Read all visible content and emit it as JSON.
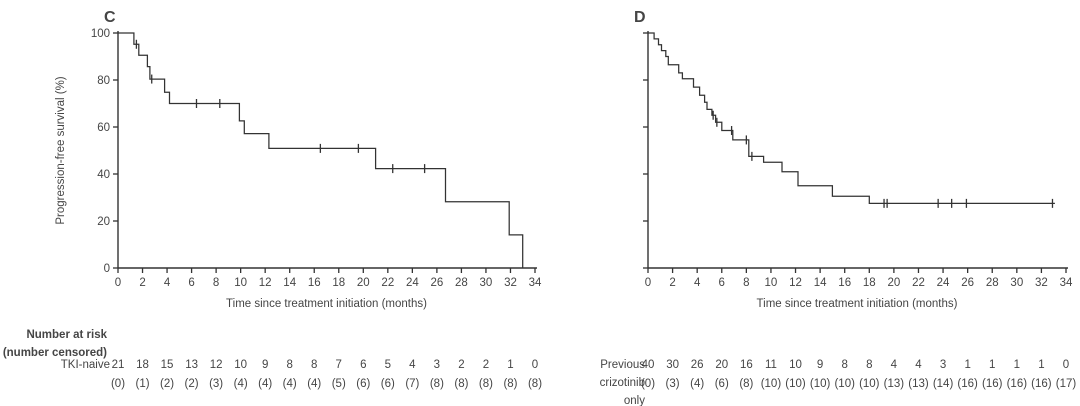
{
  "figure": {
    "background_color": "#ffffff",
    "text_color": "#454545",
    "line_color": "#333333",
    "xlabel": "Time since treatment initiation (months)",
    "ylabel": "Progression-free survival (%)",
    "at_risk_header": [
      "Number at risk",
      "(number censored)"
    ]
  },
  "chart_data": [
    {
      "type": "line",
      "subtype": "kaplan-meier-step",
      "panel_label": "C",
      "series_name": "TKI-naive",
      "xlabel": "Time since treatment initiation (months)",
      "ylabel": "Progression-free survival (%)",
      "xlim": [
        0,
        34
      ],
      "ylim": [
        0,
        100
      ],
      "x_ticks": [
        0,
        2,
        4,
        6,
        8,
        10,
        12,
        14,
        16,
        18,
        20,
        22,
        24,
        26,
        28,
        30,
        32,
        34
      ],
      "y_ticks": [
        0,
        20,
        40,
        60,
        80,
        100
      ],
      "show_y_tick_labels": true,
      "grid": false,
      "steps": [
        [
          0,
          100
        ],
        [
          1.3,
          95.2
        ],
        [
          1.7,
          90.5
        ],
        [
          2.4,
          85.7
        ],
        [
          2.6,
          80.4
        ],
        [
          3.8,
          74.8
        ],
        [
          4.2,
          70.0
        ],
        [
          9.9,
          62.6
        ],
        [
          10.3,
          57.2
        ],
        [
          12.3,
          50.9
        ],
        [
          21.0,
          42.3
        ],
        [
          26.7,
          28.2
        ],
        [
          31.9,
          14.1
        ],
        [
          33.0,
          0
        ]
      ],
      "end_time": 33.0,
      "censor_marks": [
        [
          1.5,
          95.2
        ],
        [
          2.75,
          80.4
        ],
        [
          6.4,
          70.0
        ],
        [
          8.3,
          70.0
        ],
        [
          16.5,
          50.9
        ],
        [
          19.6,
          50.9
        ],
        [
          22.4,
          42.3
        ],
        [
          25.0,
          42.3
        ]
      ],
      "at_risk_label_lines": [
        "TKI-naive"
      ],
      "number_at_risk": [
        21,
        18,
        15,
        13,
        12,
        10,
        9,
        8,
        8,
        7,
        6,
        5,
        4,
        3,
        2,
        2,
        1,
        0
      ],
      "number_censored": [
        0,
        1,
        2,
        2,
        3,
        4,
        4,
        4,
        4,
        5,
        6,
        6,
        7,
        8,
        8,
        8,
        8,
        8
      ]
    },
    {
      "type": "line",
      "subtype": "kaplan-meier-step",
      "panel_label": "D",
      "series_name": "Previous crizotinib only",
      "xlabel": "Time since treatment initiation (months)",
      "ylabel": "Progression-free survival (%)",
      "xlim": [
        0,
        34
      ],
      "ylim": [
        0,
        100
      ],
      "x_ticks": [
        0,
        2,
        4,
        6,
        8,
        10,
        12,
        14,
        16,
        18,
        20,
        22,
        24,
        26,
        28,
        30,
        32,
        34
      ],
      "y_ticks": [
        0,
        20,
        40,
        60,
        80,
        100
      ],
      "show_y_tick_labels": false,
      "grid": false,
      "steps": [
        [
          0,
          100
        ],
        [
          0.5,
          97.5
        ],
        [
          0.85,
          95
        ],
        [
          1.1,
          92.5
        ],
        [
          1.45,
          90
        ],
        [
          1.65,
          86.5
        ],
        [
          2.5,
          83
        ],
        [
          2.8,
          80.5
        ],
        [
          3.7,
          77
        ],
        [
          4.2,
          73.5
        ],
        [
          4.6,
          70.5
        ],
        [
          4.8,
          67.5
        ],
        [
          5.2,
          65
        ],
        [
          5.5,
          62
        ],
        [
          6.0,
          58.5
        ],
        [
          6.9,
          54.5
        ],
        [
          8.2,
          47.5
        ],
        [
          9.4,
          45
        ],
        [
          10.9,
          41
        ],
        [
          12.2,
          35
        ],
        [
          15.0,
          30.5
        ],
        [
          18.0,
          27.5
        ]
      ],
      "end_time": 33.1,
      "censor_marks": [
        [
          5.3,
          65
        ],
        [
          5.6,
          62
        ],
        [
          6.8,
          58.5
        ],
        [
          8.0,
          54.5
        ],
        [
          8.45,
          47.5
        ],
        [
          19.2,
          27.5
        ],
        [
          19.45,
          27.5
        ],
        [
          23.6,
          27.5
        ],
        [
          24.7,
          27.5
        ],
        [
          25.9,
          27.5
        ],
        [
          32.9,
          27.5
        ]
      ],
      "at_risk_label_lines": [
        "Previous",
        "crizotinib",
        "only"
      ],
      "number_at_risk": [
        40,
        30,
        26,
        20,
        16,
        11,
        10,
        9,
        8,
        8,
        4,
        4,
        3,
        1,
        1,
        1,
        1,
        0
      ],
      "number_censored": [
        0,
        3,
        4,
        6,
        8,
        10,
        10,
        10,
        10,
        10,
        13,
        13,
        14,
        16,
        16,
        16,
        16,
        17
      ]
    }
  ]
}
